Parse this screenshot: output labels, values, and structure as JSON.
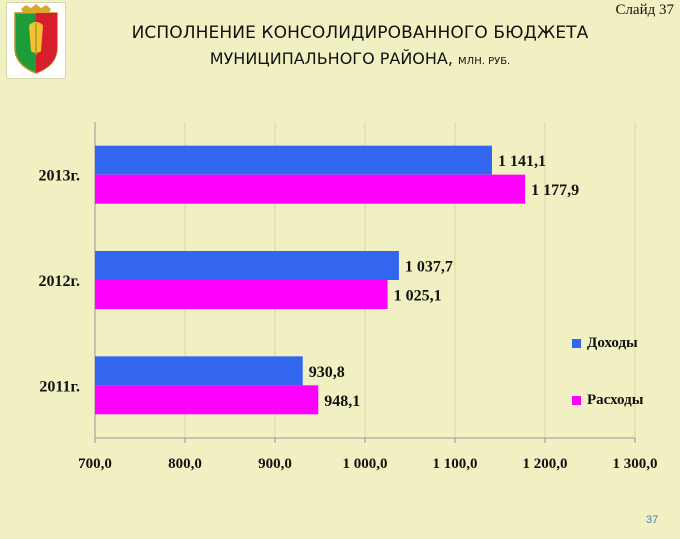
{
  "slide_label": "Слайд 37",
  "title_line1": "ИСПОЛНЕНИЕ КОНСОЛИДИРОВАННОГО БЮДЖЕТА",
  "title_line2": "МУНИЦИПАЛЬНОГО РАЙОНА, ",
  "title_unit": "МЛН. РУБ.",
  "page_number": "37",
  "colors": {
    "income": "#3366ee",
    "expense": "#ff00ff",
    "background": "#f1f0c2"
  },
  "chart_data": {
    "type": "bar",
    "orientation": "horizontal",
    "categories": [
      "2013г.",
      "2012г.",
      "2011г."
    ],
    "series": [
      {
        "name": "Доходы",
        "values": [
          1141.1,
          1037.7,
          930.8
        ],
        "labels": [
          "1 141,1",
          "1 037,7",
          "930,8"
        ]
      },
      {
        "name": "Расходы",
        "values": [
          1177.9,
          1025.1,
          948.1
        ],
        "labels": [
          "1 177,9",
          "1 025,1",
          "948,1"
        ]
      }
    ],
    "xlim": [
      700,
      1300
    ],
    "x_ticks": [
      700,
      800,
      900,
      1000,
      1100,
      1200,
      1300
    ],
    "x_tick_labels": [
      "700,0",
      "800,0",
      "900,0",
      "1 000,0",
      "1 100,0",
      "1 200,0",
      "1 300,0"
    ],
    "grid": "vertical",
    "legend_position": "right"
  }
}
